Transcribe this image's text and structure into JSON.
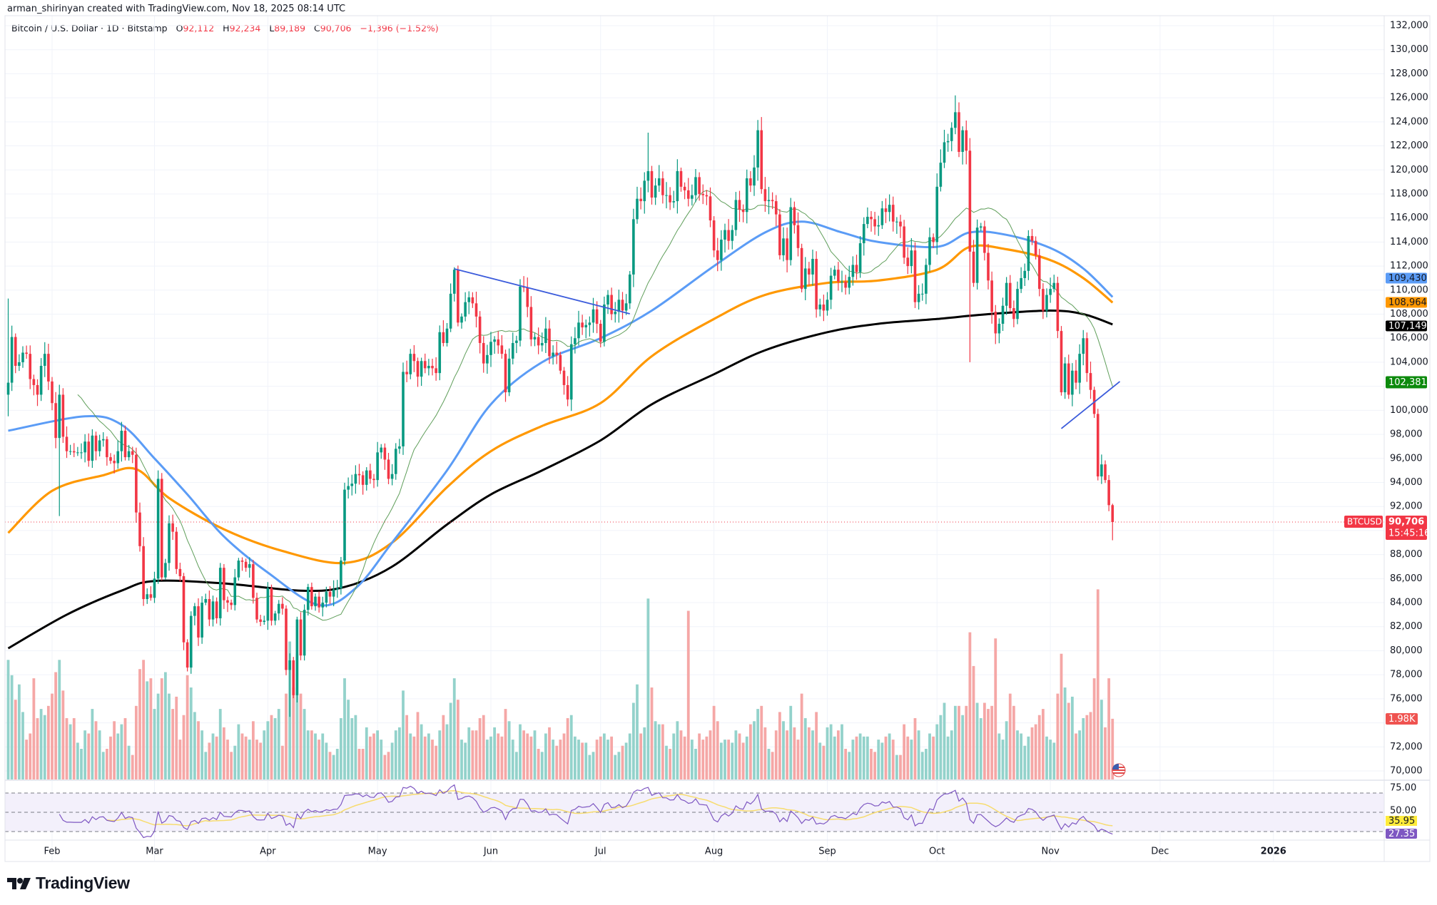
{
  "header": {
    "credit": "arman_shirinyan created with TradingView.com, Nov 18, 2025 08:14 UTC",
    "symbol_desc": "Bitcoin / U.S. Dollar · 1D · Bitstamp",
    "ohlc": {
      "o_key": "O",
      "o": "92,112",
      "h_key": "H",
      "h": "92,234",
      "l_key": "L",
      "l": "89,189",
      "c_key": "C",
      "c": "90,706",
      "change": "−1,396 (−1.52%)"
    }
  },
  "logo": {
    "text": "TradingView"
  },
  "colors": {
    "up": "#089981",
    "down": "#f23645",
    "vol_up": "#93d2cb",
    "vol_down": "#f5a7a6",
    "sma20": "#5f9e5a",
    "ma_blue": "#5b9cf6",
    "ma_orange": "#ff9800",
    "ma_black": "#000000",
    "trendline": "#3b5bdb",
    "rsi": "#7e57c2",
    "rsi_ma": "#f7dc6f",
    "rsi_band": "#f3f0fb",
    "grid": "#f0f3fa"
  },
  "chart_data": {
    "type": "candlestick",
    "symbol": "BTCUSD",
    "interval": "1D",
    "first_date": "2025-01-20",
    "first_open": 101300,
    "ylim": [
      70000,
      132000
    ],
    "y_ticks": [
      "132,000",
      "130,000",
      "128,000",
      "126,000",
      "124,000",
      "122,000",
      "120,000",
      "118,000",
      "116,000",
      "114,000",
      "112,000",
      "110,000",
      "108,000",
      "106,000",
      "104,000",
      "102,000",
      "100,000",
      "98,000",
      "96,000",
      "94,000",
      "92,000",
      "90,000",
      "88,000",
      "86,000",
      "84,000",
      "82,000",
      "80,000",
      "78,000",
      "76,000",
      "74,000",
      "72,000",
      "70,000"
    ],
    "x_ticks": [
      {
        "label": "Feb",
        "date": "2025-02-01"
      },
      {
        "label": "Mar",
        "date": "2025-03-01"
      },
      {
        "label": "Apr",
        "date": "2025-04-01"
      },
      {
        "label": "May",
        "date": "2025-05-01"
      },
      {
        "label": "Jun",
        "date": "2025-06-01"
      },
      {
        "label": "Jul",
        "date": "2025-07-01"
      },
      {
        "label": "Aug",
        "date": "2025-08-01"
      },
      {
        "label": "Sep",
        "date": "2025-09-01"
      },
      {
        "label": "Oct",
        "date": "2025-10-01"
      },
      {
        "label": "Nov",
        "date": "2025-11-01"
      },
      {
        "label": "Dec",
        "date": "2025-12-01"
      },
      {
        "label": "2026",
        "date": "2026-01-01"
      }
    ],
    "closes": [
      102300,
      106100,
      103700,
      104000,
      104800,
      104700,
      102600,
      102100,
      101300,
      103700,
      104700,
      102400,
      100600,
      97700,
      101300,
      97800,
      96600,
      96600,
      96500,
      96500,
      96500,
      97400,
      95800,
      97900,
      96600,
      97500,
      97600,
      96100,
      95800,
      95600,
      96600,
      98300,
      96100,
      96600,
      96300,
      91500,
      88700,
      84300,
      84700,
      84400,
      86000,
      94300,
      86100,
      87300,
      90600,
      89900,
      86800,
      86200,
      80700,
      78600,
      82900,
      83700,
      81100,
      84000,
      84300,
      82600,
      84100,
      82700,
      86900,
      84200,
      84000,
      83800,
      86100,
      87500,
      87400,
      86900,
      87200,
      84400,
      82600,
      82400,
      82500,
      85200,
      82500,
      83100,
      83900,
      83500,
      78400,
      79200,
      76300,
      82600,
      79600,
      83400,
      85300,
      83700,
      84500,
      83600,
      84000,
      84900,
      84500,
      85100,
      85200,
      87500,
      93400,
      93700,
      93900,
      94700,
      94600,
      93800,
      95000,
      94300,
      94200,
      96500,
      96900,
      95900,
      94300,
      94700,
      96800,
      97000,
      103200,
      103000,
      104700,
      104100,
      102800,
      104100,
      103500,
      103700,
      103500,
      103100,
      106500,
      105600,
      106800,
      109700,
      111700,
      107300,
      107800,
      109000,
      109400,
      108900,
      107800,
      105600,
      103900,
      104600,
      105700,
      105900,
      105400,
      104700,
      101500,
      104300,
      105600,
      105800,
      110300,
      110200,
      108600,
      105900,
      106100,
      105400,
      105600,
      106800,
      104500,
      104800,
      104600,
      103300,
      102100,
      100900,
      105500,
      106000,
      107300,
      106900,
      107100,
      107300,
      108400,
      107200,
      105700,
      108800,
      109600,
      108000,
      108200,
      109200,
      108300,
      108900,
      111300,
      115900,
      117600,
      117400,
      119100,
      119900,
      117700,
      118700,
      119300,
      117900,
      117900,
      117300,
      117400,
      119900,
      118600,
      118300,
      117600,
      117900,
      119400,
      118000,
      117900,
      117800,
      115800,
      113300,
      112500,
      114200,
      115000,
      114100,
      115000,
      117500,
      116700,
      116500,
      119300,
      118700,
      120200,
      123300,
      118400,
      117400,
      117500,
      117400,
      116300,
      112900,
      114300,
      112500,
      116900,
      115400,
      113500,
      110100,
      111800,
      111300,
      112600,
      108400,
      108800,
      108300,
      109200,
      111200,
      111700,
      110700,
      110700,
      110200,
      111100,
      112100,
      111500,
      113900,
      115500,
      116100,
      115900,
      115300,
      115400,
      116800,
      116500,
      117100,
      115700,
      115700,
      115300,
      112700,
      112000,
      113300,
      109000,
      109700,
      109700,
      112100,
      114400,
      114000,
      118600,
      120600,
      122300,
      122400,
      123500,
      124800,
      121500,
      123300,
      121600,
      113200,
      110600,
      115200,
      115300,
      113100,
      110800,
      108200,
      106400,
      107200,
      108700,
      110600,
      108500,
      107600,
      110100,
      111000,
      111600,
      114500,
      114100,
      112900,
      110100,
      108300,
      109600,
      110100,
      110600,
      106600,
      101500,
      103900,
      101300,
      103300,
      102300,
      104700,
      106000,
      103100,
      101700,
      99700,
      94500,
      95500,
      94200,
      92112,
      90706
    ],
    "extremes": [
      {
        "date": "2025-01-20",
        "high": 109300,
        "low": 99500
      },
      {
        "date": "2025-02-03",
        "low": 91200
      },
      {
        "date": "2025-03-02",
        "high": 95000
      },
      {
        "date": "2025-04-07",
        "low": 74500
      },
      {
        "date": "2025-05-22",
        "high": 111900
      },
      {
        "date": "2025-07-14",
        "high": 123100
      },
      {
        "date": "2025-08-14",
        "high": 124400
      },
      {
        "date": "2025-10-06",
        "high": 126200
      },
      {
        "date": "2025-10-10",
        "low": 104000
      },
      {
        "date": "2025-11-18",
        "high": 92234,
        "low": 89189
      }
    ],
    "volume_unit": "K",
    "volumes": [
      3.9,
      3.4,
      2.6,
      3.1,
      2.2,
      1.3,
      1.5,
      3.3,
      2.0,
      2.3,
      2.1,
      2.4,
      2.8,
      3.5,
      3.9,
      2.9,
      2.0,
      1.8,
      2.0,
      1.2,
      1.0,
      1.6,
      1.5,
      2.3,
      1.9,
      1.6,
      0.9,
      1.0,
      1.4,
      1.9,
      1.5,
      1.8,
      2.0,
      1.1,
      0.8,
      2.4,
      3.6,
      3.9,
      3.2,
      3.3,
      2.3,
      2.8,
      3.3,
      3.5,
      2.8,
      2.3,
      2.7,
      1.3,
      2.1,
      3.4,
      3.0,
      2.2,
      1.9,
      1.6,
      0.9,
      1.2,
      1.5,
      1.4,
      2.3,
      1.7,
      1.3,
      0.9,
      1.1,
      1.8,
      1.5,
      1.4,
      1.3,
      1.9,
      1.3,
      1.2,
      1.6,
      1.9,
      2.1,
      2.0,
      2.3,
      1.1,
      2.8,
      4.5,
      3.0,
      4.1,
      2.8,
      2.3,
      1.6,
      1.6,
      1.5,
      1.3,
      1.5,
      1.2,
      0.9,
      0.8,
      1.0,
      2.0,
      3.3,
      2.6,
      2.0,
      2.1,
      1.0,
      1.0,
      1.7,
      1.4,
      1.5,
      1.6,
      1.3,
      0.8,
      0.9,
      1.2,
      1.6,
      1.7,
      2.9,
      2.1,
      1.5,
      1.4,
      2.2,
      1.8,
      1.4,
      1.5,
      1.3,
      1.1,
      1.6,
      2.1,
      1.8,
      2.5,
      3.3,
      2.6,
      1.3,
      1.2,
      1.7,
      1.6,
      1.6,
      2.0,
      2.1,
      1.3,
      1.4,
      1.7,
      1.5,
      1.4,
      2.3,
      1.9,
      1.3,
      0.9,
      1.8,
      1.6,
      1.5,
      1.4,
      1.6,
      1.0,
      0.9,
      1.5,
      1.7,
      1.3,
      1.1,
      1.3,
      1.5,
      2.0,
      2.1,
      1.4,
      1.3,
      1.2,
      1.2,
      0.8,
      0.9,
      1.3,
      1.4,
      1.5,
      1.3,
      1.4,
      0.8,
      0.9,
      1.1,
      1.2,
      1.5,
      2.5,
      3.1,
      1.5,
      1.7,
      5.9,
      3.0,
      1.9,
      1.8,
      1.8,
      1.1,
      1.0,
      1.5,
      1.9,
      1.6,
      1.4,
      5.5,
      1.3,
      1.0,
      1.5,
      1.3,
      1.4,
      1.6,
      2.4,
      1.9,
      1.2,
      1.3,
      1.3,
      1.2,
      1.6,
      1.5,
      1.2,
      1.4,
      1.8,
      1.9,
      2.3,
      2.4,
      1.7,
      1.0,
      0.9,
      1.6,
      2.2,
      1.9,
      1.6,
      2.4,
      1.7,
      1.3,
      2.8,
      2.0,
      1.7,
      1.6,
      2.2,
      1.2,
      1.1,
      1.7,
      1.8,
      1.4,
      1.6,
      1.8,
      1.0,
      0.9,
      1.3,
      1.4,
      1.5,
      1.4,
      1.4,
      1.0,
      0.9,
      1.3,
      1.2,
      1.4,
      1.5,
      1.3,
      0.8,
      0.8,
      1.8,
      1.4,
      1.3,
      2.0,
      1.6,
      0.9,
      1.0,
      1.5,
      1.4,
      1.8,
      2.1,
      2.5,
      1.4,
      1.6,
      2.4,
      2.4,
      2.1,
      2.4,
      4.8,
      3.7,
      2.5,
      2.0,
      2.5,
      2.3,
      2.4,
      4.6,
      1.5,
      1.3,
      1.9,
      2.8,
      2.4,
      1.6,
      1.5,
      1.1,
      1.4,
      1.7,
      1.8,
      2.1,
      2.3,
      1.4,
      1.3,
      1.2,
      2.8,
      4.1,
      3.0,
      2.5,
      2.7,
      1.5,
      1.6,
      2.0,
      2.1,
      2.2,
      3.3,
      6.2,
      2.6,
      1.7,
      3.3,
      1.98
    ],
    "moving_averages": [
      {
        "id": "sma20",
        "computed_period": 20,
        "last_value": "102,381"
      },
      {
        "id": "ma_blue",
        "last_value": "109,430",
        "points": [
          [
            "2025-01-20",
            98300
          ],
          [
            "2025-02-10",
            99500
          ],
          [
            "2025-02-20",
            98800
          ],
          [
            "2025-03-01",
            96000
          ],
          [
            "2025-03-10",
            93000
          ],
          [
            "2025-03-20",
            89500
          ],
          [
            "2025-04-01",
            86500
          ],
          [
            "2025-04-15",
            83800
          ],
          [
            "2025-04-25",
            85200
          ],
          [
            "2025-05-05",
            89000
          ],
          [
            "2025-05-20",
            95000
          ],
          [
            "2025-06-01",
            100500
          ],
          [
            "2025-06-15",
            104000
          ],
          [
            "2025-07-01",
            106000
          ],
          [
            "2025-07-15",
            108300
          ],
          [
            "2025-08-01",
            112000
          ],
          [
            "2025-08-15",
            114800
          ],
          [
            "2025-08-25",
            115700
          ],
          [
            "2025-09-05",
            114800
          ],
          [
            "2025-09-15",
            114000
          ],
          [
            "2025-10-01",
            113600
          ],
          [
            "2025-10-10",
            114800
          ],
          [
            "2025-10-20",
            114600
          ],
          [
            "2025-11-01",
            113500
          ],
          [
            "2025-11-10",
            111800
          ],
          [
            "2025-11-18",
            109430
          ]
        ]
      },
      {
        "id": "ma_orange",
        "last_value": "108,964",
        "points": [
          [
            "2025-01-20",
            89800
          ],
          [
            "2025-02-01",
            93300
          ],
          [
            "2025-02-15",
            94600
          ],
          [
            "2025-02-24",
            95100
          ],
          [
            "2025-03-05",
            92700
          ],
          [
            "2025-03-20",
            90100
          ],
          [
            "2025-04-05",
            88300
          ],
          [
            "2025-04-22",
            87300
          ],
          [
            "2025-05-05",
            89000
          ],
          [
            "2025-05-20",
            93600
          ],
          [
            "2025-06-01",
            96600
          ],
          [
            "2025-06-15",
            98700
          ],
          [
            "2025-07-01",
            100600
          ],
          [
            "2025-07-15",
            104500
          ],
          [
            "2025-08-01",
            107600
          ],
          [
            "2025-08-15",
            109600
          ],
          [
            "2025-09-01",
            110600
          ],
          [
            "2025-09-15",
            110800
          ],
          [
            "2025-10-01",
            111700
          ],
          [
            "2025-10-10",
            113600
          ],
          [
            "2025-10-20",
            113400
          ],
          [
            "2025-11-01",
            112500
          ],
          [
            "2025-11-10",
            111000
          ],
          [
            "2025-11-18",
            108964
          ]
        ]
      },
      {
        "id": "ma_black",
        "last_value": "107,149",
        "points": [
          [
            "2025-01-20",
            80200
          ],
          [
            "2025-02-05",
            83000
          ],
          [
            "2025-02-20",
            85000
          ],
          [
            "2025-03-01",
            85800
          ],
          [
            "2025-03-20",
            85600
          ],
          [
            "2025-04-10",
            85000
          ],
          [
            "2025-04-22",
            85300
          ],
          [
            "2025-05-05",
            87000
          ],
          [
            "2025-05-20",
            90500
          ],
          [
            "2025-06-01",
            93000
          ],
          [
            "2025-06-15",
            95000
          ],
          [
            "2025-07-01",
            97500
          ],
          [
            "2025-07-15",
            100500
          ],
          [
            "2025-08-01",
            103000
          ],
          [
            "2025-08-15",
            105000
          ],
          [
            "2025-09-01",
            106500
          ],
          [
            "2025-09-15",
            107200
          ],
          [
            "2025-10-01",
            107600
          ],
          [
            "2025-10-15",
            108000
          ],
          [
            "2025-11-01",
            108300
          ],
          [
            "2025-11-10",
            108000
          ],
          [
            "2025-11-18",
            107149
          ]
        ]
      }
    ],
    "trendlines": [
      {
        "from": [
          "2025-05-22",
          111770
        ],
        "to": [
          "2025-07-09",
          108030
        ]
      },
      {
        "from": [
          "2025-11-04",
          98480
        ],
        "to": [
          "2025-11-20",
          102400
        ]
      }
    ],
    "rsi": {
      "period": 14,
      "ma_period": 14,
      "bands": [
        70,
        50,
        30
      ],
      "axis_ticks": [
        "75.00",
        "50.00"
      ],
      "rsi_label": "27.35",
      "ma_label": "35.95"
    },
    "last_price_label": {
      "symbol": "BTCUSD",
      "price": "90,706",
      "countdown": "15:45:16"
    },
    "volume_label": "1.98K"
  }
}
